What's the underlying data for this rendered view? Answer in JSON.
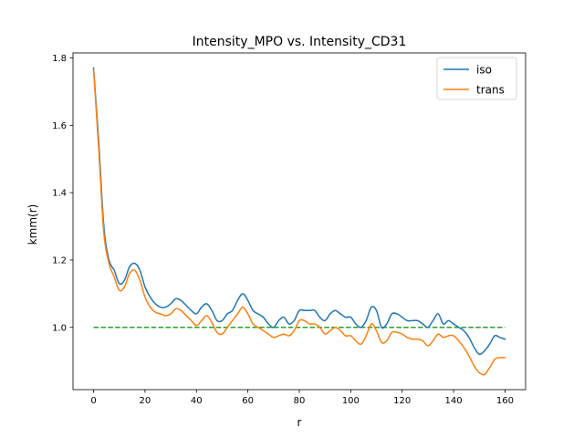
{
  "chart_data": {
    "type": "line",
    "title": "Intensity_MPO vs. Intensity_CD31",
    "xlabel": "r",
    "ylabel": "kmm(r)",
    "xlim": [
      -8,
      168
    ],
    "ylim": [
      0.815,
      1.815
    ],
    "xticks": [
      0,
      20,
      40,
      60,
      80,
      100,
      120,
      140,
      160
    ],
    "yticks": [
      1.0,
      1.2,
      1.4,
      1.6,
      1.8
    ],
    "ytick_labels": [
      "1.0",
      "1.2",
      "1.4",
      "1.6",
      "1.8"
    ],
    "grid": false,
    "legend_position": "top-right",
    "x": [
      0,
      2,
      4,
      6,
      8,
      10,
      12,
      14,
      16,
      18,
      20,
      22,
      24,
      26,
      28,
      30,
      32,
      34,
      36,
      38,
      40,
      42,
      44,
      46,
      48,
      50,
      52,
      54,
      56,
      58,
      60,
      62,
      64,
      66,
      68,
      70,
      72,
      74,
      76,
      78,
      80,
      82,
      84,
      86,
      88,
      90,
      92,
      94,
      96,
      98,
      100,
      102,
      104,
      106,
      108,
      110,
      112,
      114,
      116,
      118,
      120,
      122,
      124,
      126,
      128,
      130,
      132,
      134,
      136,
      138,
      140,
      142,
      144,
      146,
      148,
      150,
      152,
      154,
      156,
      158,
      160
    ],
    "series": [
      {
        "name": "iso",
        "color": "#1f77b4",
        "values": [
          1.77,
          1.55,
          1.3,
          1.2,
          1.17,
          1.13,
          1.14,
          1.18,
          1.19,
          1.17,
          1.12,
          1.09,
          1.07,
          1.06,
          1.06,
          1.07,
          1.085,
          1.08,
          1.065,
          1.05,
          1.04,
          1.06,
          1.07,
          1.05,
          1.02,
          1.02,
          1.04,
          1.05,
          1.08,
          1.1,
          1.08,
          1.05,
          1.04,
          1.03,
          1.01,
          1.0,
          1.02,
          1.03,
          1.01,
          1.02,
          1.05,
          1.05,
          1.05,
          1.05,
          1.03,
          1.02,
          1.04,
          1.05,
          1.04,
          1.03,
          1.03,
          1.01,
          1.0,
          1.02,
          1.06,
          1.05,
          1.0,
          1.01,
          1.04,
          1.04,
          1.03,
          1.02,
          1.02,
          1.02,
          1.01,
          1.0,
          1.02,
          1.04,
          1.01,
          1.02,
          1.01,
          1.0,
          0.99,
          0.97,
          0.94,
          0.92,
          0.93,
          0.95,
          0.975,
          0.97,
          0.965
        ]
      },
      {
        "name": "trans",
        "color": "#ff7f0e",
        "values": [
          1.765,
          1.53,
          1.28,
          1.19,
          1.15,
          1.11,
          1.12,
          1.16,
          1.17,
          1.14,
          1.09,
          1.06,
          1.045,
          1.04,
          1.035,
          1.04,
          1.055,
          1.05,
          1.035,
          1.02,
          1.005,
          1.02,
          1.035,
          1.015,
          0.985,
          0.98,
          1.0,
          1.02,
          1.04,
          1.06,
          1.04,
          1.01,
          1.0,
          0.99,
          0.98,
          0.97,
          0.975,
          0.98,
          0.975,
          0.99,
          1.02,
          1.02,
          1.01,
          1.01,
          1.0,
          0.98,
          0.99,
          1.0,
          0.99,
          0.975,
          0.975,
          0.96,
          0.95,
          0.975,
          1.01,
          0.99,
          0.955,
          0.96,
          0.985,
          0.985,
          0.98,
          0.97,
          0.965,
          0.965,
          0.96,
          0.945,
          0.96,
          0.98,
          0.97,
          0.975,
          0.975,
          0.96,
          0.94,
          0.915,
          0.885,
          0.865,
          0.86,
          0.88,
          0.905,
          0.91,
          0.91
        ]
      }
    ],
    "reference_line": {
      "y": 1.0,
      "x_range": [
        0,
        160
      ],
      "color": "#2ca02c",
      "style": "dashed"
    }
  }
}
